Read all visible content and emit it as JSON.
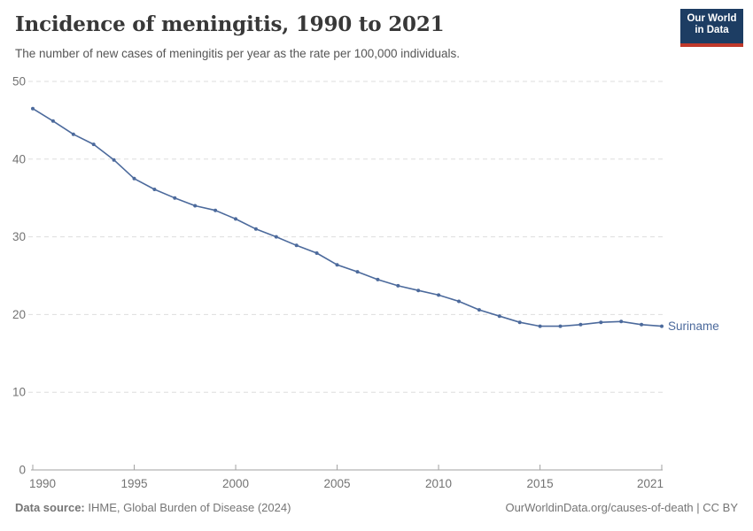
{
  "header": {
    "title": "Incidence of meningitis, 1990 to 2021",
    "subtitle": "The number of new cases of meningitis per year as the rate per 100,000 individuals.",
    "logo_line1": "Our World",
    "logo_line2": "in Data"
  },
  "chart_data": {
    "type": "line",
    "title": "Incidence of meningitis, 1990 to 2021",
    "subtitle": "The number of new cases of meningitis per year as the rate per 100,000 individuals.",
    "xlabel": "",
    "ylabel": "",
    "x": [
      1990,
      1991,
      1992,
      1993,
      1994,
      1995,
      1996,
      1997,
      1998,
      1999,
      2000,
      2001,
      2002,
      2003,
      2004,
      2005,
      2006,
      2007,
      2008,
      2009,
      2010,
      2011,
      2012,
      2013,
      2014,
      2015,
      2016,
      2017,
      2018,
      2019,
      2020,
      2021
    ],
    "series": [
      {
        "name": "Suriname",
        "color": "#4c6a9c",
        "values": [
          46.5,
          44.9,
          43.2,
          41.9,
          39.9,
          37.5,
          36.1,
          35.0,
          34.0,
          33.4,
          32.3,
          31.0,
          30.0,
          28.9,
          27.9,
          26.4,
          25.5,
          24.5,
          23.7,
          23.1,
          22.5,
          21.7,
          20.6,
          19.8,
          19.0,
          18.5,
          18.5,
          18.7,
          19.0,
          19.1,
          18.7,
          18.5
        ]
      }
    ],
    "ylim": [
      0,
      50
    ],
    "yticks": [
      0,
      10,
      20,
      30,
      40,
      50
    ],
    "xticks": [
      1990,
      1995,
      2000,
      2005,
      2010,
      2015,
      2021
    ],
    "grid": "horizontal-dashed",
    "legend_position": "end-of-line-label",
    "markers": "dots"
  },
  "footer": {
    "source_label": "Data source:",
    "source_value": " IHME, Global Burden of Disease (2024)",
    "credit": "OurWorldinData.org/causes-of-death | CC BY"
  },
  "colors": {
    "line": "#4c6a9c",
    "grid": "#dddddd",
    "axis": "#a1a1a1",
    "tick_text": "#737373",
    "title_text": "#383838",
    "subtitle_text": "#555555",
    "footer_text": "#757575",
    "logo_bg": "#1d3d63",
    "logo_red": "#c0392b",
    "background": "#ffffff"
  }
}
